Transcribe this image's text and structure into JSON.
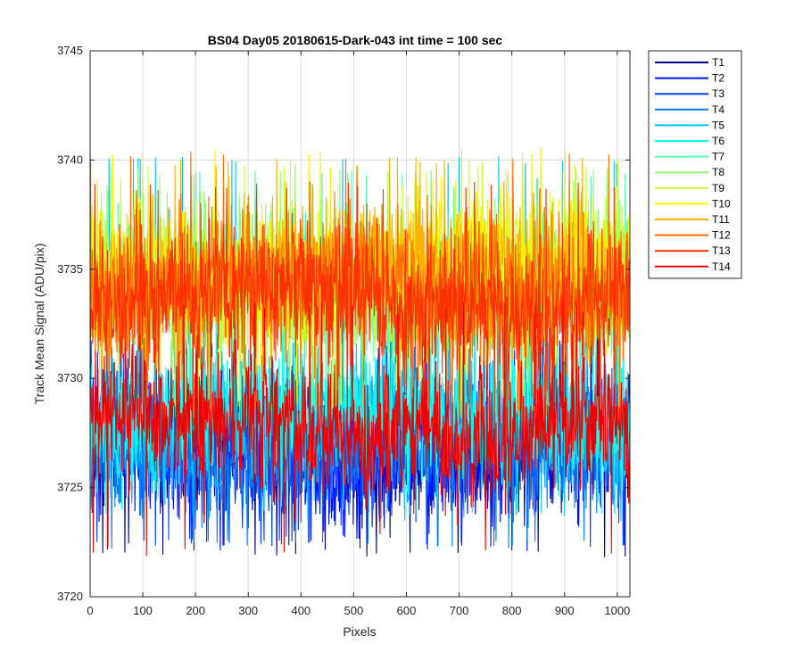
{
  "chart_data": {
    "type": "line",
    "title": "BS04 Day05 20180615-Dark-043 int time = 100 sec",
    "xlabel": "Pixels",
    "ylabel": "Track Mean Signal (ADU/pix)",
    "xlim": [
      0,
      1024
    ],
    "ylim": [
      3720,
      3745
    ],
    "xticks": [
      0,
      100,
      200,
      300,
      400,
      500,
      600,
      700,
      800,
      900,
      1000
    ],
    "yticks": [
      3720,
      3725,
      3730,
      3735,
      3740,
      3745
    ],
    "grid": true,
    "legend_position": "outside-top-right",
    "x": {
      "start": 1,
      "end": 1024,
      "step": 1
    },
    "series": [
      {
        "name": "T1",
        "color": "#00008f",
        "mean": 3726.8,
        "noise_amplitude": 1.4,
        "min": 3721.8,
        "max": 3732.0
      },
      {
        "name": "T2",
        "color": "#0010ff",
        "mean": 3726.7,
        "noise_amplitude": 1.4,
        "min": 3722.0,
        "max": 3731.5
      },
      {
        "name": "T3",
        "color": "#0040ff",
        "mean": 3726.9,
        "noise_amplitude": 1.4,
        "min": 3722.3,
        "max": 3731.8
      },
      {
        "name": "T4",
        "color": "#0080ff",
        "mean": 3727.0,
        "noise_amplitude": 1.4,
        "min": 3722.2,
        "max": 3732.0
      },
      {
        "name": "T5",
        "color": "#00c0ff",
        "mean": 3728.2,
        "noise_amplitude": 1.5,
        "min": 3723.5,
        "max": 3740.2
      },
      {
        "name": "T6",
        "color": "#10ffef",
        "mean": 3728.4,
        "noise_amplitude": 1.5,
        "min": 3723.8,
        "max": 3736.5
      },
      {
        "name": "T7",
        "color": "#50ffaf",
        "mean": 3734.0,
        "noise_amplitude": 1.6,
        "min": 3728.0,
        "max": 3739.5
      },
      {
        "name": "T8",
        "color": "#90ff6f",
        "mean": 3734.3,
        "noise_amplitude": 1.6,
        "min": 3728.2,
        "max": 3739.8
      },
      {
        "name": "T9",
        "color": "#d0ff2f",
        "mean": 3734.6,
        "noise_amplitude": 1.6,
        "min": 3728.5,
        "max": 3740.0
      },
      {
        "name": "T10",
        "color": "#ffef00",
        "mean": 3734.8,
        "noise_amplitude": 1.6,
        "min": 3728.8,
        "max": 3740.6
      },
      {
        "name": "T11",
        "color": "#ffb000",
        "mean": 3734.5,
        "noise_amplitude": 1.6,
        "min": 3728.5,
        "max": 3740.1
      },
      {
        "name": "T12",
        "color": "#ff7000",
        "mean": 3734.2,
        "noise_amplitude": 1.6,
        "min": 3728.0,
        "max": 3740.4
      },
      {
        "name": "T13",
        "color": "#ff3000",
        "mean": 3733.6,
        "noise_amplitude": 1.6,
        "min": 3727.5,
        "max": 3739.0
      },
      {
        "name": "T14",
        "color": "#ef0000",
        "mean": 3727.8,
        "noise_amplitude": 1.5,
        "min": 3721.8,
        "max": 3733.5
      }
    ]
  }
}
